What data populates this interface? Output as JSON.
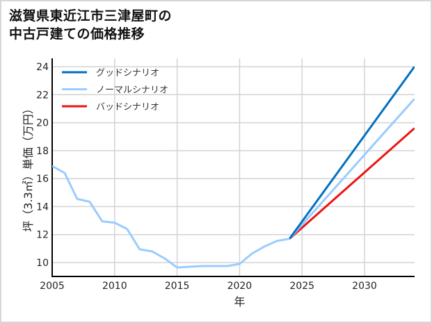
{
  "title_line1": "滋賀県東近江市三津屋町の",
  "title_line2": "中古戸建ての価格推移",
  "chart_data": {
    "type": "line",
    "title": "滋賀県東近江市三津屋町の中古戸建ての価格推移",
    "xlabel": "年",
    "ylabel": "坪（3.3㎡）単価（万円）",
    "xlim": [
      2005,
      2034
    ],
    "ylim": [
      9,
      24.6
    ],
    "xticks": [
      2005,
      2010,
      2015,
      2020,
      2025,
      2030
    ],
    "yticks": [
      10,
      12,
      14,
      16,
      18,
      20,
      22,
      24
    ],
    "grid": true,
    "legend_position": "upper left",
    "series": [
      {
        "name": "ノーマルシナリオ",
        "color": "#99ccff",
        "x": [
          2005,
          2006,
          2007,
          2008,
          2009,
          2010,
          2011,
          2012,
          2013,
          2014,
          2015,
          2016,
          2017,
          2018,
          2019,
          2020,
          2021,
          2022,
          2023,
          2024
        ],
        "values": [
          16.9,
          16.4,
          14.55,
          14.35,
          12.95,
          12.85,
          12.4,
          10.95,
          10.8,
          10.3,
          9.65,
          9.7,
          9.75,
          9.75,
          9.75,
          9.9,
          10.65,
          11.15,
          11.55,
          11.7
        ]
      },
      {
        "name": "グッドシナリオ",
        "color": "#0070c0",
        "x": [
          2024,
          2034
        ],
        "values": [
          11.7,
          24.0
        ]
      },
      {
        "name": "ノーマルシナリオ",
        "color": "#99ccff",
        "x": [
          2024,
          2034
        ],
        "values": [
          11.7,
          21.7
        ]
      },
      {
        "name": "バッドシナリオ",
        "color": "#ee1111",
        "x": [
          2024,
          2034
        ],
        "values": [
          11.7,
          19.6
        ]
      }
    ],
    "legend": [
      "グッドシナリオ",
      "ノーマルシナリオ",
      "バッドシナリオ"
    ]
  }
}
